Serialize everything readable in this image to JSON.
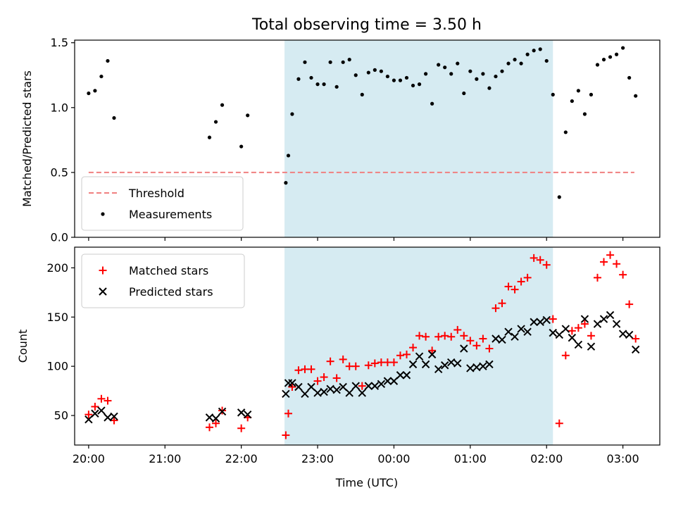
{
  "chart_data": {
    "title": "Total observing time = 3.50 h",
    "xlabel": "Time (UTC)",
    "x_axis_type": "time",
    "xlim": [
      "19:49",
      "03:29"
    ],
    "xticks": [
      "20:00",
      "21:00",
      "22:00",
      "23:00",
      "00:00",
      "01:00",
      "02:00",
      "03:00"
    ],
    "highlight_span": {
      "start": "22:34",
      "end": "02:05",
      "color": "#add8e6"
    },
    "panels": [
      {
        "id": "ratio",
        "type": "scatter",
        "ylabel": "Matched/Predicted stars",
        "ylim": [
          0,
          1.52
        ],
        "yticks": [
          "0.0",
          "0.5",
          "1.0",
          "1.5"
        ],
        "legend_position": "lower-left",
        "threshold": {
          "name": "Threshold",
          "value": 0.5,
          "x_range": [
            "20:00",
            "03:09"
          ],
          "style": "dashed",
          "color": "#f08080"
        },
        "series": [
          {
            "name": "Measurements",
            "marker": "dot",
            "color": "#000000",
            "points": [
              [
                "20:00",
                1.11
              ],
              [
                "20:05",
                1.13
              ],
              [
                "20:10",
                1.24
              ],
              [
                "20:15",
                1.36
              ],
              [
                "20:20",
                0.92
              ],
              [
                "21:35",
                0.77
              ],
              [
                "21:40",
                0.89
              ],
              [
                "21:45",
                1.02
              ],
              [
                "22:00",
                0.7
              ],
              [
                "22:05",
                0.94
              ],
              [
                "22:35",
                0.42
              ],
              [
                "22:37",
                0.63
              ],
              [
                "22:40",
                0.95
              ],
              [
                "22:45",
                1.22
              ],
              [
                "22:50",
                1.35
              ],
              [
                "22:55",
                1.23
              ],
              [
                "23:00",
                1.18
              ],
              [
                "23:05",
                1.18
              ],
              [
                "23:10",
                1.35
              ],
              [
                "23:15",
                1.16
              ],
              [
                "23:20",
                1.35
              ],
              [
                "23:25",
                1.37
              ],
              [
                "23:30",
                1.25
              ],
              [
                "23:35",
                1.1
              ],
              [
                "23:40",
                1.27
              ],
              [
                "23:45",
                1.29
              ],
              [
                "23:50",
                1.28
              ],
              [
                "23:55",
                1.24
              ],
              [
                "00:00",
                1.21
              ],
              [
                "00:05",
                1.21
              ],
              [
                "00:10",
                1.23
              ],
              [
                "00:15",
                1.17
              ],
              [
                "00:20",
                1.18
              ],
              [
                "00:25",
                1.26
              ],
              [
                "00:30",
                1.03
              ],
              [
                "00:35",
                1.33
              ],
              [
                "00:40",
                1.31
              ],
              [
                "00:45",
                1.26
              ],
              [
                "00:50",
                1.34
              ],
              [
                "00:55",
                1.11
              ],
              [
                "01:00",
                1.28
              ],
              [
                "01:05",
                1.22
              ],
              [
                "01:10",
                1.26
              ],
              [
                "01:15",
                1.15
              ],
              [
                "01:20",
                1.24
              ],
              [
                "01:25",
                1.28
              ],
              [
                "01:30",
                1.34
              ],
              [
                "01:35",
                1.37
              ],
              [
                "01:40",
                1.34
              ],
              [
                "01:45",
                1.41
              ],
              [
                "01:50",
                1.44
              ],
              [
                "01:55",
                1.45
              ],
              [
                "02:00",
                1.36
              ],
              [
                "02:05",
                1.1
              ],
              [
                "02:10",
                0.31
              ],
              [
                "02:15",
                0.81
              ],
              [
                "02:20",
                1.05
              ],
              [
                "02:25",
                1.13
              ],
              [
                "02:30",
                0.95
              ],
              [
                "02:35",
                1.1
              ],
              [
                "02:40",
                1.33
              ],
              [
                "02:45",
                1.37
              ],
              [
                "02:50",
                1.39
              ],
              [
                "02:55",
                1.41
              ],
              [
                "03:00",
                1.46
              ],
              [
                "03:05",
                1.23
              ],
              [
                "03:10",
                1.09
              ]
            ]
          }
        ]
      },
      {
        "id": "counts",
        "type": "scatter",
        "ylabel": "Count",
        "ylim": [
          20,
          221
        ],
        "yticks": [
          "50",
          "100",
          "150",
          "200"
        ],
        "legend_position": "upper-left",
        "series": [
          {
            "name": "Matched stars",
            "marker": "plus",
            "color": "#ff0000",
            "points": [
              [
                "20:00",
                51
              ],
              [
                "20:05",
                59
              ],
              [
                "20:10",
                67
              ],
              [
                "20:15",
                65
              ],
              [
                "20:20",
                45
              ],
              [
                "21:35",
                38
              ],
              [
                "21:40",
                42
              ],
              [
                "21:45",
                55
              ],
              [
                "22:00",
                37
              ],
              [
                "22:05",
                48
              ],
              [
                "22:35",
                30
              ],
              [
                "22:37",
                52
              ],
              [
                "22:40",
                79
              ],
              [
                "22:45",
                96
              ],
              [
                "22:50",
                97
              ],
              [
                "22:55",
                97
              ],
              [
                "23:00",
                85
              ],
              [
                "23:05",
                89
              ],
              [
                "23:10",
                105
              ],
              [
                "23:15",
                88
              ],
              [
                "23:20",
                107
              ],
              [
                "23:25",
                100
              ],
              [
                "23:30",
                100
              ],
              [
                "23:35",
                80
              ],
              [
                "23:40",
                101
              ],
              [
                "23:45",
                103
              ],
              [
                "23:50",
                104
              ],
              [
                "23:55",
                104
              ],
              [
                "00:00",
                104
              ],
              [
                "00:05",
                111
              ],
              [
                "00:10",
                112
              ],
              [
                "00:15",
                119
              ],
              [
                "00:20",
                131
              ],
              [
                "00:25",
                130
              ],
              [
                "00:30",
                116
              ],
              [
                "00:35",
                130
              ],
              [
                "00:40",
                131
              ],
              [
                "00:45",
                130
              ],
              [
                "00:50",
                137
              ],
              [
                "00:55",
                131
              ],
              [
                "01:00",
                126
              ],
              [
                "01:05",
                121
              ],
              [
                "01:10",
                128
              ],
              [
                "01:15",
                118
              ],
              [
                "01:20",
                159
              ],
              [
                "01:25",
                164
              ],
              [
                "01:30",
                181
              ],
              [
                "01:35",
                178
              ],
              [
                "01:40",
                186
              ],
              [
                "01:45",
                190
              ],
              [
                "01:50",
                210
              ],
              [
                "01:55",
                208
              ],
              [
                "02:00",
                203
              ],
              [
                "02:05",
                148
              ],
              [
                "02:10",
                42
              ],
              [
                "02:15",
                111
              ],
              [
                "02:20",
                136
              ],
              [
                "02:25",
                139
              ],
              [
                "02:30",
                143
              ],
              [
                "02:35",
                131
              ],
              [
                "02:40",
                190
              ],
              [
                "02:45",
                206
              ],
              [
                "02:50",
                213
              ],
              [
                "02:55",
                204
              ],
              [
                "03:00",
                193
              ],
              [
                "03:05",
                163
              ],
              [
                "03:10",
                128
              ]
            ]
          },
          {
            "name": "Predicted stars",
            "marker": "x",
            "color": "#000000",
            "points": [
              [
                "20:00",
                46
              ],
              [
                "20:05",
                52
              ],
              [
                "20:10",
                55
              ],
              [
                "20:15",
                48
              ],
              [
                "20:20",
                49
              ],
              [
                "21:35",
                48
              ],
              [
                "21:40",
                47
              ],
              [
                "21:45",
                54
              ],
              [
                "22:00",
                53
              ],
              [
                "22:05",
                51
              ],
              [
                "22:35",
                72
              ],
              [
                "22:37",
                83
              ],
              [
                "22:40",
                83
              ],
              [
                "22:45",
                79
              ],
              [
                "22:50",
                72
              ],
              [
                "22:55",
                79
              ],
              [
                "23:00",
                73
              ],
              [
                "23:05",
                74
              ],
              [
                "23:10",
                77
              ],
              [
                "23:15",
                76
              ],
              [
                "23:20",
                79
              ],
              [
                "23:25",
                73
              ],
              [
                "23:30",
                80
              ],
              [
                "23:35",
                73
              ],
              [
                "23:40",
                80
              ],
              [
                "23:45",
                80
              ],
              [
                "23:50",
                82
              ],
              [
                "23:55",
                85
              ],
              [
                "00:00",
                85
              ],
              [
                "00:05",
                91
              ],
              [
                "00:10",
                91
              ],
              [
                "00:15",
                102
              ],
              [
                "00:20",
                110
              ],
              [
                "00:25",
                102
              ],
              [
                "00:30",
                112
              ],
              [
                "00:35",
                97
              ],
              [
                "00:40",
                101
              ],
              [
                "00:45",
                104
              ],
              [
                "00:50",
                103
              ],
              [
                "00:55",
                118
              ],
              [
                "01:00",
                98
              ],
              [
                "01:05",
                99
              ],
              [
                "01:10",
                100
              ],
              [
                "01:15",
                102
              ],
              [
                "01:20",
                128
              ],
              [
                "01:25",
                127
              ],
              [
                "01:30",
                135
              ],
              [
                "01:35",
                130
              ],
              [
                "01:40",
                138
              ],
              [
                "01:45",
                135
              ],
              [
                "01:50",
                145
              ],
              [
                "01:55",
                145
              ],
              [
                "02:00",
                147
              ],
              [
                "02:05",
                134
              ],
              [
                "02:10",
                132
              ],
              [
                "02:15",
                138
              ],
              [
                "02:20",
                129
              ],
              [
                "02:25",
                122
              ],
              [
                "02:30",
                148
              ],
              [
                "02:35",
                120
              ],
              [
                "02:40",
                143
              ],
              [
                "02:45",
                148
              ],
              [
                "02:50",
                152
              ],
              [
                "02:55",
                143
              ],
              [
                "03:00",
                133
              ],
              [
                "03:05",
                132
              ],
              [
                "03:10",
                117
              ]
            ]
          }
        ]
      }
    ]
  }
}
